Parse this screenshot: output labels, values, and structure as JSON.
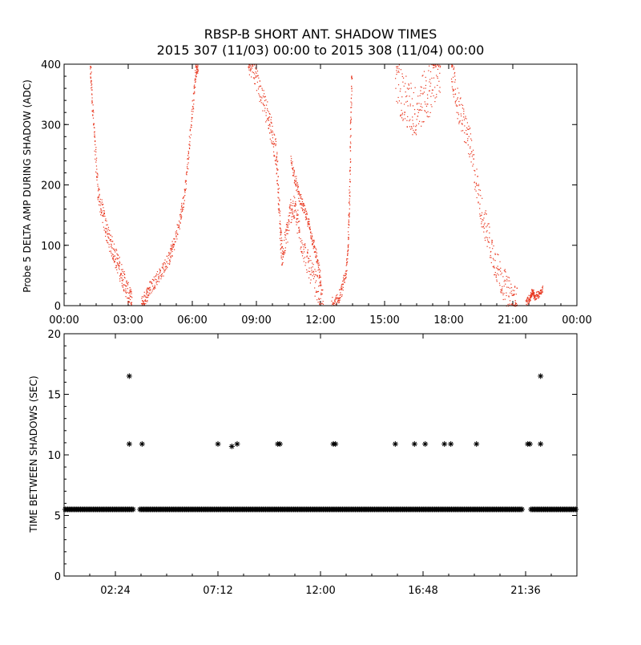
{
  "title": "RBSP-B SHORT ANT. SHADOW TIMES",
  "subtitle": "2015 307 (11/03) 00:00 to 2015 308 (11/04) 00:00",
  "colors": {
    "top_series": "#e8341c",
    "bottom_series": "#000000",
    "axes": "#000000",
    "background": "#ffffff"
  },
  "chart_data": [
    {
      "type": "scatter",
      "ylabel": "Probe 5 DELTA AMP DURING SHADOW (ADC)",
      "xlabel": "",
      "x_unit": "hours since 2015-11-03 00:00",
      "xlim": [
        0,
        24
      ],
      "ylim": [
        0,
        400
      ],
      "x_ticks": [
        0,
        3,
        6,
        9,
        12,
        15,
        18,
        21,
        24
      ],
      "x_tick_labels": [
        "00:00",
        "03:00",
        "06:00",
        "09:00",
        "12:00",
        "15:00",
        "18:00",
        "21:00",
        "00:00"
      ],
      "y_ticks": [
        0,
        100,
        200,
        300,
        400
      ],
      "y_tick_labels": [
        "0",
        "100",
        "200",
        "300",
        "400"
      ],
      "grid": false,
      "series": [
        {
          "color": "#e8341c",
          "envelope": [
            {
              "segment": "a",
              "points": [
                [
                  1.2,
                  400
                ],
                [
                  1.3,
                  340
                ],
                [
                  1.45,
                  250
                ],
                [
                  1.6,
                  180
                ],
                [
                  1.8,
                  150
                ],
                [
                  2.0,
                  120
                ],
                [
                  2.2,
                  100
                ],
                [
                  2.4,
                  80
                ],
                [
                  2.6,
                  60
                ],
                [
                  2.8,
                  40
                ],
                [
                  3.0,
                  18
                ],
                [
                  3.15,
                  5
                ]
              ],
              "spread": 18
            },
            {
              "segment": "b",
              "points": [
                [
                  3.6,
                  5
                ],
                [
                  3.8,
                  15
                ],
                [
                  4.0,
                  30
                ],
                [
                  4.3,
                  45
                ],
                [
                  4.6,
                  60
                ],
                [
                  4.9,
                  80
                ],
                [
                  5.1,
                  100
                ],
                [
                  5.4,
                  140
                ],
                [
                  5.6,
                  180
                ],
                [
                  5.8,
                  250
                ],
                [
                  6.0,
                  330
                ],
                [
                  6.15,
                  390
                ],
                [
                  6.25,
                  400
                ]
              ],
              "spread": 12
            },
            {
              "segment": "c",
              "points": [
                [
                  8.6,
                  400
                ],
                [
                  8.9,
                  390
                ],
                [
                  9.2,
                  350
                ],
                [
                  9.5,
                  320
                ],
                [
                  9.7,
                  290
                ],
                [
                  9.9,
                  250
                ],
                [
                  10.0,
                  200
                ],
                [
                  10.1,
                  120
                ],
                [
                  10.2,
                  80
                ],
                [
                  10.4,
                  120
                ],
                [
                  10.6,
                  160
                ],
                [
                  10.8,
                  160
                ],
                [
                  11.0,
                  120
                ],
                [
                  11.3,
                  80
                ],
                [
                  11.6,
                  50
                ],
                [
                  11.9,
                  25
                ],
                [
                  12.1,
                  5
                ]
              ],
              "spread": 22
            },
            {
              "segment": "d",
              "points": [
                [
                  10.6,
                  240
                ],
                [
                  10.8,
                  210
                ],
                [
                  11.0,
                  180
                ],
                [
                  11.2,
                  160
                ],
                [
                  11.4,
                  140
                ],
                [
                  11.6,
                  110
                ],
                [
                  11.8,
                  80
                ],
                [
                  12.0,
                  40
                ]
              ],
              "spread": 10
            },
            {
              "segment": "e",
              "points": [
                [
                  12.5,
                  5
                ],
                [
                  12.8,
                  10
                ],
                [
                  13.0,
                  30
                ],
                [
                  13.2,
                  60
                ],
                [
                  13.3,
                  120
                ],
                [
                  13.35,
                  200
                ],
                [
                  13.4,
                  300
                ],
                [
                  13.45,
                  390
                ]
              ],
              "spread": 10
            },
            {
              "segment": "f",
              "points": [
                [
                  15.5,
                  380
                ],
                [
                  15.8,
                  350
                ],
                [
                  16.1,
                  330
                ],
                [
                  16.4,
                  320
                ],
                [
                  16.7,
                  340
                ],
                [
                  17.0,
                  350
                ],
                [
                  17.3,
                  380
                ],
                [
                  17.6,
                  390
                ]
              ],
              "spread": 45
            },
            {
              "segment": "g",
              "points": [
                [
                  18.1,
                  400
                ],
                [
                  18.3,
                  350
                ],
                [
                  18.6,
                  310
                ],
                [
                  18.9,
                  280
                ],
                [
                  19.2,
                  220
                ],
                [
                  19.5,
                  160
                ],
                [
                  19.8,
                  120
                ],
                [
                  20.1,
                  80
                ],
                [
                  20.4,
                  50
                ],
                [
                  20.7,
                  25
                ],
                [
                  21.0,
                  10
                ],
                [
                  21.2,
                  3
                ]
              ],
              "spread": 28
            },
            {
              "segment": "h",
              "points": [
                [
                  21.6,
                  5
                ],
                [
                  21.8,
                  15
                ],
                [
                  21.9,
                  25
                ],
                [
                  22.0,
                  15
                ],
                [
                  22.2,
                  20
                ],
                [
                  22.4,
                  30
                ]
              ],
              "spread": 6
            }
          ]
        }
      ]
    },
    {
      "type": "scatter",
      "ylabel": "TIME BETWEEN SHADOWS (SEC)",
      "xlabel": "",
      "x_unit": "hours since 2015-11-03 00:00",
      "xlim": [
        0,
        24
      ],
      "ylim": [
        0,
        20
      ],
      "x_ticks": [
        2.4,
        7.2,
        12.0,
        16.8,
        21.6
      ],
      "x_tick_labels": [
        "02:24",
        "07:12",
        "12:00",
        "16:48",
        "21:36"
      ],
      "y_ticks": [
        0,
        5,
        10,
        15,
        20
      ],
      "y_tick_labels": [
        "0",
        "5",
        "10",
        "15",
        "20"
      ],
      "grid": false,
      "series": [
        {
          "color": "#000000",
          "marker": "asterisk",
          "baseline": {
            "y": 5.5,
            "ranges": [
              [
                0.05,
                3.25
              ],
              [
                3.55,
                21.45
              ],
              [
                21.85,
                23.95
              ]
            ]
          },
          "points": [
            [
              3.05,
              16.5
            ],
            [
              3.05,
              10.9
            ],
            [
              3.65,
              10.9
            ],
            [
              7.2,
              10.9
            ],
            [
              7.85,
              10.7
            ],
            [
              8.1,
              10.9
            ],
            [
              10.0,
              10.9
            ],
            [
              10.1,
              10.9
            ],
            [
              12.6,
              10.9
            ],
            [
              12.7,
              10.9
            ],
            [
              15.5,
              10.9
            ],
            [
              16.4,
              10.9
            ],
            [
              16.9,
              10.9
            ],
            [
              17.8,
              10.9
            ],
            [
              18.1,
              10.9
            ],
            [
              19.3,
              10.9
            ],
            [
              21.7,
              10.9
            ],
            [
              21.8,
              10.9
            ],
            [
              22.3,
              16.5
            ],
            [
              22.3,
              10.9
            ]
          ]
        }
      ]
    }
  ]
}
